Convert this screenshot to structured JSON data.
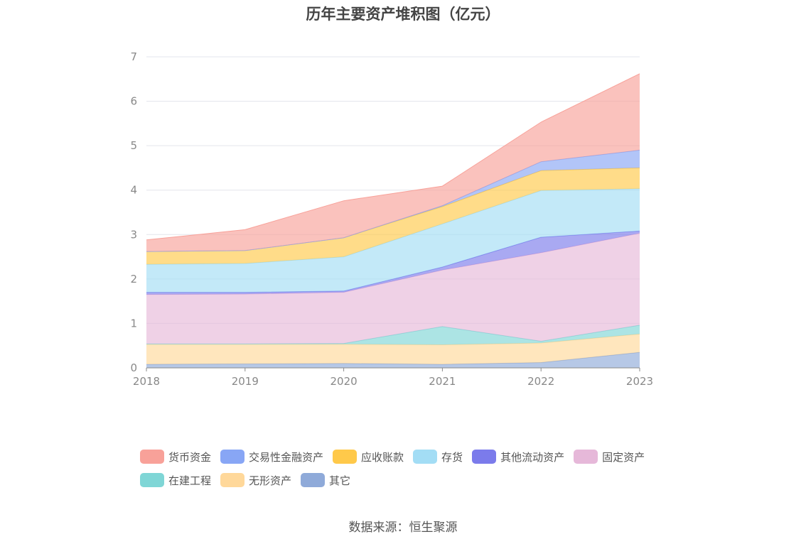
{
  "chart_data": {
    "type": "area",
    "stacked": true,
    "title": "历年主要资产堆积图（亿元）",
    "x": [
      "2018",
      "2019",
      "2020",
      "2021",
      "2022",
      "2023"
    ],
    "ylim": [
      0,
      7
    ],
    "yticks": [
      0,
      1,
      2,
      3,
      4,
      5,
      6,
      7
    ],
    "grid": true,
    "legend_position": "bottom",
    "series": [
      {
        "name": "其它",
        "color": "#8FAAD9",
        "values": [
          0.08,
          0.09,
          0.1,
          0.08,
          0.12,
          0.35
        ]
      },
      {
        "name": "无形资产",
        "color": "#FFD89A",
        "values": [
          0.45,
          0.44,
          0.43,
          0.44,
          0.44,
          0.41
        ]
      },
      {
        "name": "在建工程",
        "color": "#7FD6D6",
        "values": [
          0.01,
          0.01,
          0.02,
          0.41,
          0.04,
          0.2
        ]
      },
      {
        "name": "固定资产",
        "color": "#E6B8D9",
        "values": [
          1.11,
          1.12,
          1.15,
          1.27,
          1.99,
          2.07
        ]
      },
      {
        "name": "其他流动资产",
        "color": "#7B7BEB",
        "values": [
          0.05,
          0.04,
          0.03,
          0.07,
          0.35,
          0.05
        ]
      },
      {
        "name": "存货",
        "color": "#A3DDF5",
        "values": [
          0.63,
          0.65,
          0.77,
          0.97,
          1.05,
          0.95
        ]
      },
      {
        "name": "应收账款",
        "color": "#FFC94A",
        "values": [
          0.29,
          0.29,
          0.43,
          0.39,
          0.45,
          0.47
        ]
      },
      {
        "name": "交易性金融资产",
        "color": "#88A6F5",
        "values": [
          0.0,
          0.0,
          0.0,
          0.02,
          0.2,
          0.4
        ]
      },
      {
        "name": "货币资金",
        "color": "#F8A199",
        "values": [
          0.26,
          0.47,
          0.83,
          0.44,
          0.89,
          1.72
        ]
      }
    ]
  },
  "legend": {
    "row1": [
      "货币资金",
      "交易性金融资产",
      "应收账款",
      "存货",
      "其他流动资产",
      "固定资产"
    ],
    "row2": [
      "在建工程",
      "无形资产",
      "其它"
    ],
    "colors": {
      "货币资金": "#F8A199",
      "交易性金融资产": "#88A6F5",
      "应收账款": "#FFC94A",
      "存货": "#A3DDF5",
      "其他流动资产": "#7B7BEB",
      "固定资产": "#E6B8D9",
      "在建工程": "#7FD6D6",
      "无形资产": "#FFD89A",
      "其它": "#8FAAD9"
    }
  },
  "source": "数据来源：恒生聚源"
}
